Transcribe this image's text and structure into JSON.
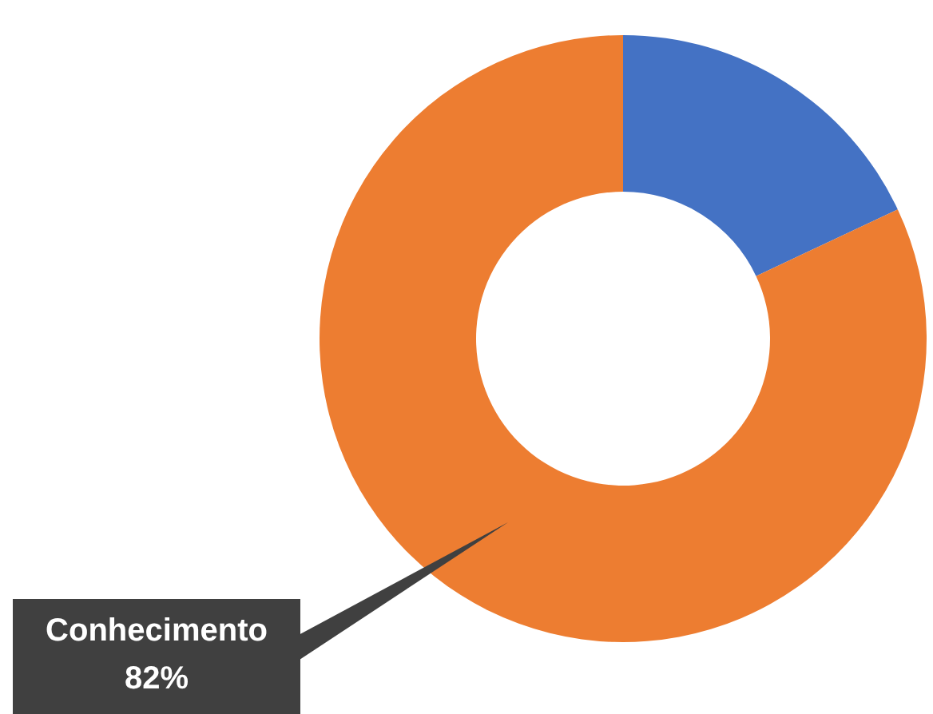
{
  "chart_data": {
    "type": "donut",
    "categories": [
      null,
      "Conhecimento"
    ],
    "values": [
      18,
      82
    ],
    "colors": [
      "#4472c4",
      "#ed7d31"
    ],
    "value_labels": [
      null,
      "82%"
    ]
  }
}
